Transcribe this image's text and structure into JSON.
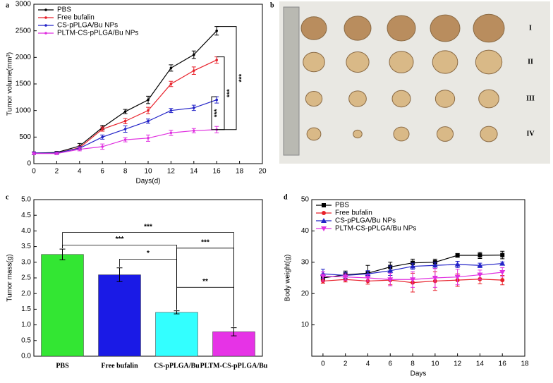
{
  "chart_data": [
    {
      "type": "line",
      "label": "a",
      "xlabel": "Days(d)",
      "ylabel": "Tumor volume(mm³)",
      "x": [
        0,
        2,
        4,
        6,
        8,
        10,
        12,
        14,
        16
      ],
      "xlim": [
        0,
        20
      ],
      "xticks": [
        0,
        2,
        4,
        6,
        8,
        10,
        12,
        14,
        16,
        18,
        20
      ],
      "ylim": [
        0,
        3000
      ],
      "yticks": [
        0,
        500,
        1000,
        1500,
        2000,
        2500,
        3000
      ],
      "legend": "upper left",
      "annotations": [
        "***",
        "***",
        "***"
      ],
      "series": [
        {
          "name": "PBS",
          "color": "#000000",
          "marker": "dot",
          "values": [
            200,
            210,
            330,
            680,
            980,
            1200,
            1800,
            2050,
            2500
          ],
          "errors": [
            20,
            20,
            50,
            40,
            40,
            70,
            60,
            70,
            80
          ]
        },
        {
          "name": "Free bufalin",
          "color": "#e8202a",
          "marker": "dot",
          "values": [
            200,
            200,
            300,
            650,
            800,
            1000,
            1500,
            1750,
            1950
          ],
          "errors": [
            20,
            20,
            30,
            40,
            50,
            60,
            50,
            70,
            60
          ]
        },
        {
          "name": "CS-pPLGA/Bu NPs",
          "color": "#2323c8",
          "marker": "dot",
          "values": [
            200,
            200,
            290,
            500,
            650,
            800,
            1000,
            1050,
            1200
          ],
          "errors": [
            20,
            20,
            30,
            40,
            60,
            40,
            40,
            50,
            60
          ]
        },
        {
          "name": "PLTM-CS-pPLGA/Bu NPs",
          "color": "#e030e0",
          "marker": "dot",
          "values": [
            190,
            190,
            270,
            320,
            450,
            480,
            580,
            620,
            640
          ],
          "errors": [
            20,
            20,
            30,
            50,
            40,
            60,
            50,
            40,
            60
          ]
        }
      ]
    },
    {
      "type": "image",
      "label": "b",
      "row_labels": [
        "I",
        "II",
        "III",
        "IV"
      ]
    },
    {
      "type": "bar",
      "label": "c",
      "ylabel": "Tumor mass(g)",
      "categories": [
        "PBS",
        "Free bufalin",
        "CS-pPLGA/Bu",
        "PLTM-CS-pPLGA/Bu"
      ],
      "values": [
        3.25,
        2.6,
        1.4,
        0.78
      ],
      "errors": [
        0.17,
        0.22,
        0.05,
        0.13
      ],
      "colors": [
        "#33e633",
        "#1a1ae6",
        "#33ffff",
        "#e633e6"
      ],
      "ylim": [
        0,
        5
      ],
      "yticks": [
        {
          "value": 0,
          "label": "0.0"
        },
        0.5,
        {
          "value": 1,
          "label": "1.0"
        },
        1.5,
        {
          "value": 2,
          "label": "2.0"
        },
        2.5,
        {
          "value": 3,
          "label": "3.0"
        },
        3.5,
        {
          "value": 4,
          "label": "4.0"
        },
        4.5,
        {
          "value": 5,
          "label": "5.0"
        }
      ],
      "annotations": [
        "***",
        "***",
        "*",
        "***",
        "**"
      ]
    },
    {
      "type": "line",
      "label": "d",
      "xlabel": "Days",
      "ylabel": "Body weight(g)",
      "x": [
        0,
        2,
        4,
        6,
        8,
        10,
        12,
        14,
        16
      ],
      "xlim": [
        -1,
        18
      ],
      "xticks": [
        0,
        2,
        4,
        6,
        8,
        10,
        12,
        14,
        16,
        18
      ],
      "ylim": [
        0,
        50
      ],
      "yticks": [
        10,
        20,
        30,
        40,
        50
      ],
      "legend": "upper left",
      "series": [
        {
          "name": "PBS",
          "color": "#000000",
          "marker": "square",
          "values": [
            25,
            26,
            26.5,
            28.5,
            29.8,
            30,
            32.2,
            32.2,
            32.3
          ],
          "errors": [
            0.8,
            1.2,
            2.5,
            1.5,
            1.2,
            1,
            0.6,
            1,
            1.2
          ]
        },
        {
          "name": "Free bufalin",
          "color": "#e8202a",
          "marker": "circle",
          "values": [
            24,
            24.5,
            24,
            24.3,
            23.5,
            24,
            24.3,
            24.6,
            24.3
          ],
          "errors": [
            0.7,
            0.8,
            1,
            1.5,
            3,
            3,
            2,
            1.5,
            1.5
          ]
        },
        {
          "name": "CS-pPLGA/Bu NPs",
          "color": "#2323c8",
          "marker": "triangle-up",
          "values": [
            26.3,
            25.8,
            26.3,
            27.3,
            28.7,
            29,
            29.3,
            29,
            29.6
          ],
          "errors": [
            1.5,
            1,
            1,
            1.5,
            1,
            1,
            1,
            0.7,
            0.5
          ]
        },
        {
          "name": "PLTM-CS-pPLGA/Bu NPs",
          "color": "#e030e0",
          "marker": "triangle-down",
          "values": [
            25.5,
            25.3,
            25,
            24.5,
            24.5,
            25,
            25.3,
            26,
            26.8
          ],
          "errors": [
            1.5,
            1,
            1,
            2,
            2.5,
            3,
            2.5,
            1.5,
            1.5
          ]
        }
      ]
    }
  ]
}
